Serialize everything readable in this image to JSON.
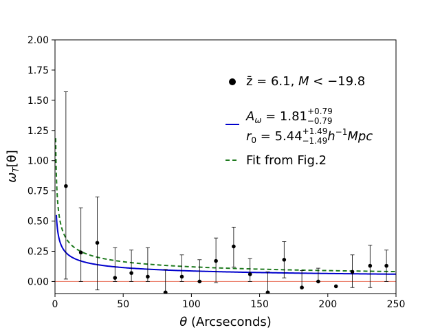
{
  "chart_data": {
    "type": "scatter",
    "title": "",
    "xlabel_symbol": "θ",
    "xlabel_rest": " (Arcseconds)",
    "ylabel_base": "ω",
    "ylabel_sub": "T",
    "ylabel_arg": "[θ]",
    "xlim": [
      0,
      250
    ],
    "ylim": [
      -0.1,
      2.0
    ],
    "xticks": [
      0,
      50,
      100,
      150,
      200,
      250
    ],
    "xtick_labels": [
      "0",
      "50",
      "100",
      "150",
      "200",
      "250"
    ],
    "yticks": [
      0.0,
      0.25,
      0.5,
      0.75,
      1.0,
      1.25,
      1.5,
      1.75,
      2.0
    ],
    "ytick_labels": [
      "0.00",
      "0.25",
      "0.50",
      "0.75",
      "1.00",
      "1.25",
      "1.50",
      "1.75",
      "2.00"
    ],
    "grid": false,
    "legend_position": "upper-right",
    "points": {
      "name": "z̄ = 6.1, M < −19.8",
      "color": "#000000",
      "x": [
        8,
        19,
        31,
        44,
        56,
        68,
        81,
        93,
        106,
        118,
        131,
        143,
        156,
        168,
        181,
        193,
        206,
        218,
        231,
        243
      ],
      "y": [
        0.79,
        0.24,
        0.32,
        0.03,
        0.07,
        0.04,
        -0.09,
        0.04,
        0.0,
        0.17,
        0.29,
        0.06,
        -0.09,
        0.18,
        -0.05,
        0.0,
        -0.04,
        0.08,
        0.13,
        0.13
      ],
      "err_low": [
        0.77,
        0.24,
        0.39,
        0.03,
        0.07,
        0.04,
        0.0,
        0.04,
        0.0,
        0.18,
        0.17,
        0.06,
        0.0,
        0.15,
        0.0,
        0.0,
        0.0,
        0.13,
        0.18,
        0.13
      ],
      "err_high": [
        0.78,
        0.37,
        0.38,
        0.25,
        0.19,
        0.24,
        0.19,
        0.18,
        0.18,
        0.19,
        0.16,
        0.13,
        0.17,
        0.15,
        0.14,
        0.11,
        0.0,
        0.14,
        0.17,
        0.13
      ]
    },
    "curves": [
      {
        "name": "A_ω fit",
        "color": "#0000cc",
        "style": "solid",
        "func": "power",
        "amplitude": 0.55,
        "exponent": -0.4,
        "x_start": 1.0
      },
      {
        "name": "Fit from Fig.2",
        "color": "#1e7a1e",
        "style": "dashed",
        "func": "power",
        "amplitude": 0.88,
        "exponent": -0.43,
        "x_start": 0.5
      }
    ],
    "reference_line": {
      "y": 0.0,
      "color": "#e8705a"
    },
    "legend": {
      "points_label_pre": "z̄ = 6.1,  ",
      "points_label_M": "M",
      "points_label_post": " < −19.8",
      "a_label_base": "A",
      "a_label_sub": "ω",
      "a_label_value": " = 1.81",
      "a_label_sup": "+0.79",
      "a_label_subscript": "−0.79",
      "r_label_base": "r",
      "r_label_sub": "0",
      "r_label_value": " = 5.44",
      "r_label_sup": "+1.49",
      "r_label_subscript": "−1.49",
      "r_label_h": "h",
      "r_label_hexp": "−1",
      "r_label_unit": "Mpc",
      "fig2_label": "Fit from Fig.2"
    }
  }
}
